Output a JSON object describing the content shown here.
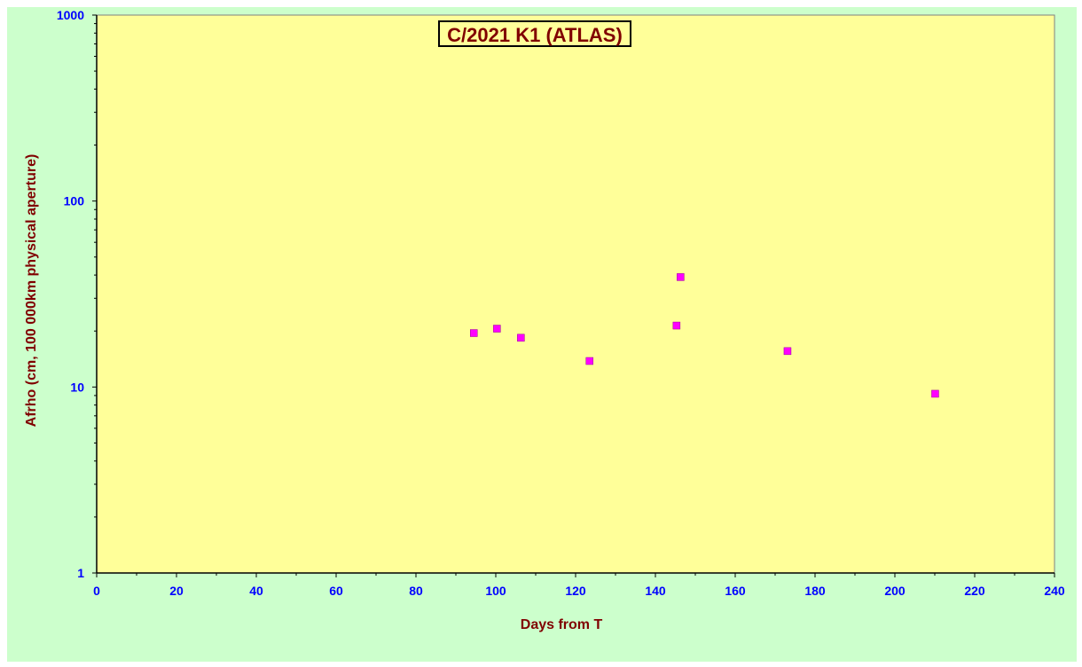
{
  "chart_data": {
    "type": "scatter",
    "title": "C/2021 K1 (ATLAS)",
    "xlabel": "Days from T",
    "ylabel": "Afrho (cm, 100 000km physical aperture)",
    "xlim": [
      0,
      240
    ],
    "ylim": [
      1,
      1000
    ],
    "yscale": "log",
    "x_ticks": [
      "0",
      "20",
      "40",
      "60",
      "80",
      "100",
      "120",
      "140",
      "160",
      "180",
      "200",
      "220",
      "240"
    ],
    "y_ticks": [
      "1",
      "10",
      "100",
      "1000"
    ],
    "grid": false,
    "legend": "none",
    "series": [
      {
        "marker_color": "#ff00ff",
        "x": [
          94.5,
          100.3,
          106.3,
          123.5,
          145.3,
          146.3,
          173.1,
          210.1
        ],
        "y": [
          19.5,
          20.6,
          18.4,
          13.8,
          21.4,
          39.0,
          15.6,
          9.2
        ]
      }
    ],
    "colors": {
      "plot_background": "#ffff99",
      "page_background": "#ccffcc",
      "tick_labels": "#0000ff",
      "axis_titles": "#800000"
    }
  }
}
